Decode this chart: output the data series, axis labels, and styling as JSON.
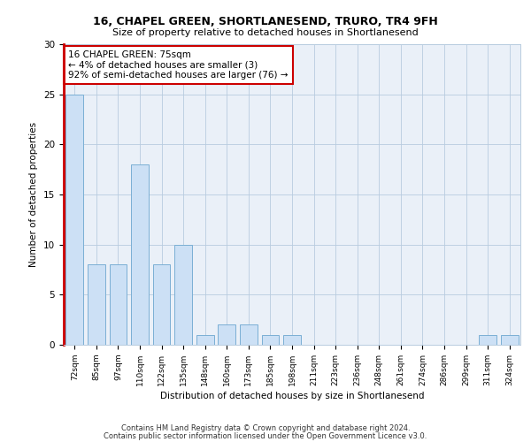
{
  "title1": "16, CHAPEL GREEN, SHORTLANESEND, TRURO, TR4 9FH",
  "title2": "Size of property relative to detached houses in Shortlanesend",
  "xlabel": "Distribution of detached houses by size in Shortlanesend",
  "ylabel": "Number of detached properties",
  "categories": [
    "72sqm",
    "85sqm",
    "97sqm",
    "110sqm",
    "122sqm",
    "135sqm",
    "148sqm",
    "160sqm",
    "173sqm",
    "185sqm",
    "198sqm",
    "211sqm",
    "223sqm",
    "236sqm",
    "248sqm",
    "261sqm",
    "274sqm",
    "286sqm",
    "299sqm",
    "311sqm",
    "324sqm"
  ],
  "values": [
    25,
    8,
    8,
    18,
    8,
    10,
    1,
    2,
    2,
    1,
    1,
    0,
    0,
    0,
    0,
    0,
    0,
    0,
    0,
    1,
    1
  ],
  "bar_color": "#cce0f5",
  "bar_edge_color": "#7bafd4",
  "highlight_line_color": "#cc0000",
  "annotation_text": "16 CHAPEL GREEN: 75sqm\n← 4% of detached houses are smaller (3)\n92% of semi-detached houses are larger (76) →",
  "annotation_box_color": "#ffffff",
  "annotation_border_color": "#cc0000",
  "ylim": [
    0,
    30
  ],
  "yticks": [
    0,
    5,
    10,
    15,
    20,
    25,
    30
  ],
  "footer1": "Contains HM Land Registry data © Crown copyright and database right 2024.",
  "footer2": "Contains public sector information licensed under the Open Government Licence v3.0.",
  "plot_bg_color": "#eaf0f8",
  "grid_color": "#b8ccdf"
}
